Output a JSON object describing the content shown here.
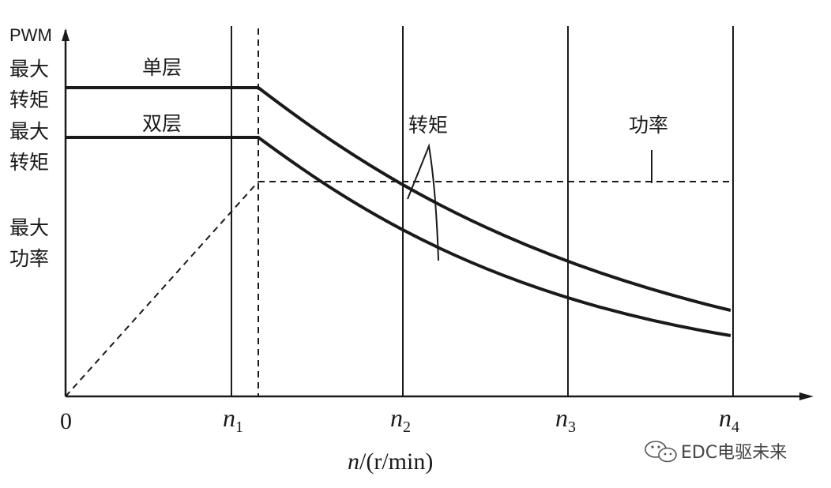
{
  "y_axis": {
    "title": "PWM",
    "labels": [
      [
        "最大",
        "转矩"
      ],
      [
        "最大",
        "转矩"
      ],
      [
        "最大",
        "功率"
      ]
    ]
  },
  "x_axis": {
    "origin": "0",
    "ticks": [
      {
        "base": "n",
        "sub": "1"
      },
      {
        "base": "n",
        "sub": "2"
      },
      {
        "base": "n",
        "sub": "3"
      },
      {
        "base": "n",
        "sub": "4"
      }
    ],
    "label_var": "n",
    "label_unit": "/(r/min)"
  },
  "annotations": {
    "single_layer": "单层",
    "double_layer": "双层",
    "torque": "转矩",
    "power": "功率"
  },
  "watermark": {
    "text": "EDC电驱未来",
    "icon": "wechat-icon"
  },
  "colors": {
    "ink": "#1a1a1a",
    "background": "#ffffff"
  }
}
